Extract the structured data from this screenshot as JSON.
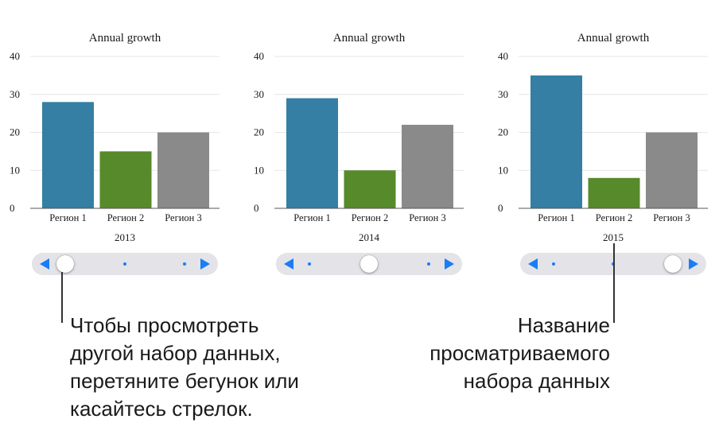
{
  "chart_data": [
    {
      "type": "bar",
      "title": "Annual growth",
      "xlabel": "2013",
      "categories": [
        "Регион 1",
        "Регион 2",
        "Регион 3"
      ],
      "values": [
        28,
        15,
        20
      ],
      "colors": [
        "#347fa3",
        "#568a2a",
        "#8a8a8a"
      ],
      "ylim": [
        0,
        40
      ],
      "yticks": [
        0,
        10,
        20,
        30,
        40
      ],
      "grid": true
    },
    {
      "type": "bar",
      "title": "Annual growth",
      "xlabel": "2014",
      "categories": [
        "Регион 1",
        "Регион 2",
        "Регион 3"
      ],
      "values": [
        29,
        10,
        22
      ],
      "colors": [
        "#347fa3",
        "#568a2a",
        "#8a8a8a"
      ],
      "ylim": [
        0,
        40
      ],
      "yticks": [
        0,
        10,
        20,
        30,
        40
      ],
      "grid": true
    },
    {
      "type": "bar",
      "title": "Annual growth",
      "xlabel": "2015",
      "categories": [
        "Регион 1",
        "Регион 2",
        "Регион 3"
      ],
      "values": [
        35,
        8,
        20
      ],
      "colors": [
        "#347fa3",
        "#568a2a",
        "#8a8a8a"
      ],
      "ylim": [
        0,
        40
      ],
      "yticks": [
        0,
        10,
        20,
        30,
        40
      ],
      "grid": true
    }
  ],
  "sliders": [
    {
      "steps": 3,
      "selected": 0
    },
    {
      "steps": 3,
      "selected": 1
    },
    {
      "steps": 3,
      "selected": 2
    }
  ],
  "callouts": {
    "left": "Чтобы просмотреть\nдругой набор данных,\nперетяните бегунок или\nкасайтесь стрелок.",
    "right": "Название\nпросматриваемого\nнабора данных"
  },
  "colors": {
    "accent": "#1a7df5",
    "slider_track": "#e3e3e8"
  }
}
